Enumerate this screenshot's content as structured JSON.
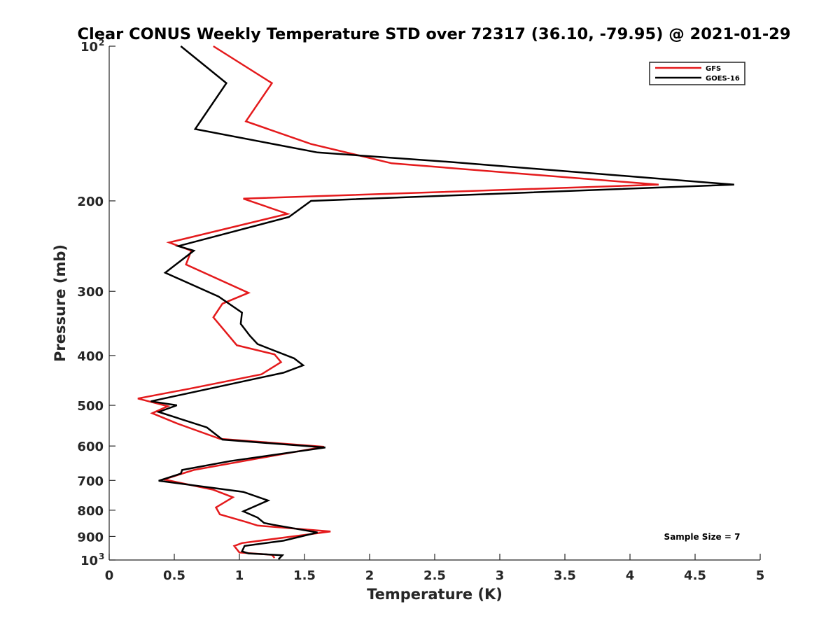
{
  "chart_data": {
    "type": "line",
    "title": "Clear CONUS Weekly Temperature STD over 72317 (36.10, -79.95) @ 2021-01-29",
    "xlabel": "Temperature (K)",
    "ylabel": "Pressure (mb)",
    "xlim": [
      0,
      5
    ],
    "ylim": [
      100,
      1000
    ],
    "y_scale": "log",
    "y_reversed": true,
    "x_ticks": [
      {
        "value": 0,
        "label": "0"
      },
      {
        "value": 0.5,
        "label": "0.5"
      },
      {
        "value": 1,
        "label": "1"
      },
      {
        "value": 1.5,
        "label": "1.5"
      },
      {
        "value": 2,
        "label": "2"
      },
      {
        "value": 2.5,
        "label": "2.5"
      },
      {
        "value": 3,
        "label": "3"
      },
      {
        "value": 3.5,
        "label": "3.5"
      },
      {
        "value": 4,
        "label": "4"
      },
      {
        "value": 4.5,
        "label": "4.5"
      },
      {
        "value": 5,
        "label": "5"
      }
    ],
    "y_ticks": [
      {
        "value": 100,
        "label": "10",
        "sup": "2"
      },
      {
        "value": 200,
        "label": "200"
      },
      {
        "value": 300,
        "label": "300"
      },
      {
        "value": 400,
        "label": "400"
      },
      {
        "value": 500,
        "label": "500"
      },
      {
        "value": 600,
        "label": "600"
      },
      {
        "value": 700,
        "label": "700"
      },
      {
        "value": 800,
        "label": "800"
      },
      {
        "value": 900,
        "label": "900"
      },
      {
        "value": 1000,
        "label": "10",
        "sup": "3"
      }
    ],
    "grid": false,
    "legend_position": "top-right",
    "annotation": "Sample Size = 7",
    "series": [
      {
        "name": "GFS",
        "color": "#e41a1c",
        "points": [
          [
            0.8,
            100
          ],
          [
            1.25,
            118
          ],
          [
            1.05,
            140
          ],
          [
            1.55,
            155
          ],
          [
            2.17,
            169
          ],
          [
            4.22,
            186
          ],
          [
            1.03,
            198
          ],
          [
            1.37,
            212
          ],
          [
            0.46,
            241
          ],
          [
            0.63,
            250
          ],
          [
            0.59,
            266
          ],
          [
            1.07,
            302
          ],
          [
            0.87,
            317
          ],
          [
            0.8,
            337
          ],
          [
            0.98,
            382
          ],
          [
            1.27,
            398
          ],
          [
            1.32,
            412
          ],
          [
            1.17,
            435
          ],
          [
            0.62,
            464
          ],
          [
            0.22,
            485
          ],
          [
            0.45,
            502
          ],
          [
            0.33,
            518
          ],
          [
            0.52,
            542
          ],
          [
            0.85,
            581
          ],
          [
            1.65,
            602
          ],
          [
            1.15,
            634
          ],
          [
            0.65,
            668
          ],
          [
            0.42,
            697
          ],
          [
            0.8,
            730
          ],
          [
            0.95,
            755
          ],
          [
            0.82,
            790
          ],
          [
            0.85,
            815
          ],
          [
            1.05,
            843
          ],
          [
            1.14,
            857
          ],
          [
            1.7,
            880
          ],
          [
            1.02,
            927
          ],
          [
            0.96,
            939
          ],
          [
            1.0,
            967
          ],
          [
            1.25,
            977
          ],
          [
            1.27,
            991
          ]
        ]
      },
      {
        "name": "GOES-16",
        "color": "#000000",
        "points": [
          [
            0.55,
            100
          ],
          [
            0.9,
            118
          ],
          [
            0.66,
            145
          ],
          [
            1.6,
            161
          ],
          [
            2.62,
            168
          ],
          [
            4.8,
            186
          ],
          [
            1.55,
            200
          ],
          [
            1.38,
            215
          ],
          [
            0.53,
            245
          ],
          [
            0.65,
            250
          ],
          [
            0.43,
            276
          ],
          [
            0.84,
            307
          ],
          [
            1.02,
            330
          ],
          [
            1.01,
            347
          ],
          [
            1.08,
            366
          ],
          [
            1.14,
            380
          ],
          [
            1.42,
            405
          ],
          [
            1.49,
            418
          ],
          [
            1.34,
            432
          ],
          [
            0.32,
            491
          ],
          [
            0.52,
            500
          ],
          [
            0.38,
            515
          ],
          [
            0.75,
            552
          ],
          [
            0.87,
            583
          ],
          [
            1.66,
            604
          ],
          [
            0.93,
            642
          ],
          [
            0.56,
            668
          ],
          [
            0.55,
            679
          ],
          [
            0.38,
            701
          ],
          [
            1.03,
            737
          ],
          [
            1.22,
            766
          ],
          [
            1.03,
            804
          ],
          [
            1.14,
            827
          ],
          [
            1.19,
            847
          ],
          [
            1.26,
            854
          ],
          [
            1.6,
            884
          ],
          [
            1.34,
            917
          ],
          [
            1.04,
            939
          ],
          [
            1.02,
            962
          ],
          [
            1.07,
            971
          ],
          [
            1.33,
            979
          ],
          [
            1.3,
            997
          ]
        ]
      }
    ]
  }
}
